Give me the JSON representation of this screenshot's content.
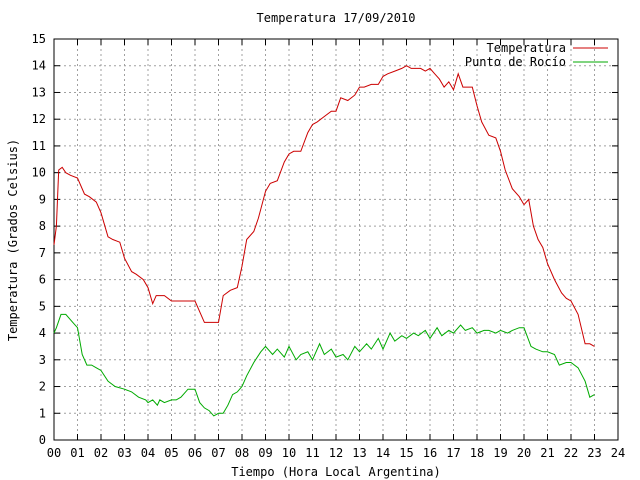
{
  "chart_data": {
    "type": "line",
    "title": "Temperatura 17/09/2010",
    "xlabel": "Tiempo (Hora Local Argentina)",
    "ylabel": "Temperatura (Grados Celsius)",
    "xlim": [
      0,
      24
    ],
    "ylim": [
      0,
      15
    ],
    "x_tick_labels": [
      "00",
      "01",
      "02",
      "03",
      "04",
      "05",
      "06",
      "07",
      "08",
      "09",
      "10",
      "11",
      "12",
      "13",
      "14",
      "15",
      "16",
      "17",
      "18",
      "19",
      "20",
      "21",
      "22",
      "23",
      "24"
    ],
    "y_tick_labels": [
      "0",
      "1",
      "2",
      "3",
      "4",
      "5",
      "6",
      "7",
      "8",
      "9",
      "10",
      "11",
      "12",
      "13",
      "14",
      "15"
    ],
    "grid": true,
    "legend_position": "top-right",
    "series": [
      {
        "name": "Temperatura",
        "color": "#cc0000",
        "x": [
          0.0,
          0.1,
          0.2,
          0.35,
          0.5,
          0.7,
          1.0,
          1.3,
          1.5,
          1.8,
          2.0,
          2.3,
          2.5,
          2.8,
          3.0,
          3.3,
          3.5,
          3.8,
          4.0,
          4.2,
          4.35,
          4.5,
          4.7,
          5.0,
          5.2,
          5.5,
          6.0,
          6.4,
          6.5,
          7.0,
          7.2,
          7.5,
          7.8,
          8.0,
          8.2,
          8.5,
          8.7,
          9.0,
          9.2,
          9.5,
          9.8,
          10.0,
          10.2,
          10.5,
          10.8,
          11.0,
          11.2,
          11.5,
          11.8,
          12.0,
          12.2,
          12.5,
          12.8,
          13.0,
          13.2,
          13.5,
          13.8,
          14.0,
          14.2,
          14.5,
          14.8,
          15.0,
          15.2,
          15.4,
          15.6,
          15.8,
          16.0,
          16.2,
          16.4,
          16.6,
          16.8,
          17.0,
          17.2,
          17.4,
          17.6,
          17.8,
          18.0,
          18.2,
          18.5,
          18.8,
          19.0,
          19.2,
          19.5,
          19.8,
          20.0,
          20.2,
          20.4,
          20.6,
          20.8,
          21.0,
          21.3,
          21.6,
          21.8,
          22.0,
          22.3,
          22.6,
          22.8,
          23.0
        ],
        "values": [
          7.3,
          8.0,
          10.1,
          10.2,
          10.0,
          9.9,
          9.8,
          9.2,
          9.1,
          8.9,
          8.5,
          7.6,
          7.5,
          7.4,
          6.8,
          6.3,
          6.2,
          6.0,
          5.7,
          5.1,
          5.4,
          5.4,
          5.4,
          5.2,
          5.2,
          5.2,
          5.2,
          4.4,
          4.4,
          4.4,
          5.4,
          5.6,
          5.7,
          6.5,
          7.5,
          7.8,
          8.3,
          9.3,
          9.6,
          9.7,
          10.4,
          10.7,
          10.8,
          10.8,
          11.5,
          11.8,
          11.9,
          12.1,
          12.3,
          12.3,
          12.8,
          12.7,
          12.9,
          13.2,
          13.2,
          13.3,
          13.3,
          13.6,
          13.7,
          13.8,
          13.9,
          14.0,
          13.9,
          13.9,
          13.9,
          13.8,
          13.9,
          13.7,
          13.5,
          13.2,
          13.4,
          13.1,
          13.7,
          13.2,
          13.2,
          13.2,
          12.5,
          11.9,
          11.4,
          11.3,
          10.8,
          10.1,
          9.4,
          9.1,
          8.8,
          9.0,
          8.0,
          7.5,
          7.2,
          6.6,
          6.0,
          5.5,
          5.3,
          5.2,
          4.7,
          3.6,
          3.6,
          3.5
        ]
      },
      {
        "name": "Punto de Rocío",
        "color": "#00aa00",
        "x": [
          0.0,
          0.1,
          0.3,
          0.5,
          0.8,
          1.0,
          1.2,
          1.4,
          1.6,
          1.8,
          2.0,
          2.3,
          2.6,
          3.0,
          3.3,
          3.6,
          3.9,
          4.0,
          4.2,
          4.4,
          4.5,
          4.7,
          5.0,
          5.2,
          5.4,
          5.7,
          6.0,
          6.2,
          6.4,
          6.6,
          6.8,
          7.0,
          7.2,
          7.4,
          7.6,
          7.8,
          8.0,
          8.2,
          8.5,
          8.8,
          9.0,
          9.3,
          9.5,
          9.8,
          10.0,
          10.3,
          10.5,
          10.8,
          11.0,
          11.3,
          11.5,
          11.8,
          12.0,
          12.3,
          12.5,
          12.8,
          13.0,
          13.3,
          13.5,
          13.8,
          14.0,
          14.3,
          14.5,
          14.8,
          15.0,
          15.3,
          15.5,
          15.8,
          16.0,
          16.3,
          16.5,
          16.8,
          17.0,
          17.3,
          17.5,
          17.8,
          18.0,
          18.3,
          18.5,
          18.8,
          19.0,
          19.3,
          19.5,
          19.8,
          20.0,
          20.3,
          20.5,
          20.8,
          21.0,
          21.3,
          21.5,
          21.8,
          22.0,
          22.3,
          22.6,
          22.8,
          23.0
        ],
        "values": [
          4.0,
          4.2,
          4.7,
          4.7,
          4.4,
          4.2,
          3.2,
          2.8,
          2.8,
          2.7,
          2.6,
          2.2,
          2.0,
          1.9,
          1.8,
          1.6,
          1.5,
          1.4,
          1.5,
          1.3,
          1.5,
          1.4,
          1.5,
          1.5,
          1.6,
          1.9,
          1.9,
          1.4,
          1.2,
          1.1,
          0.9,
          1.0,
          1.0,
          1.3,
          1.7,
          1.8,
          2.0,
          2.4,
          2.9,
          3.3,
          3.5,
          3.2,
          3.4,
          3.1,
          3.5,
          3.0,
          3.2,
          3.3,
          3.0,
          3.6,
          3.2,
          3.4,
          3.1,
          3.2,
          3.0,
          3.5,
          3.3,
          3.6,
          3.4,
          3.8,
          3.4,
          4.0,
          3.7,
          3.9,
          3.8,
          4.0,
          3.9,
          4.1,
          3.8,
          4.2,
          3.9,
          4.1,
          4.0,
          4.3,
          4.1,
          4.2,
          4.0,
          4.1,
          4.1,
          4.0,
          4.1,
          4.0,
          4.1,
          4.2,
          4.2,
          3.5,
          3.4,
          3.3,
          3.3,
          3.2,
          2.8,
          2.9,
          2.9,
          2.7,
          2.2,
          1.6,
          1.7
        ]
      }
    ]
  }
}
